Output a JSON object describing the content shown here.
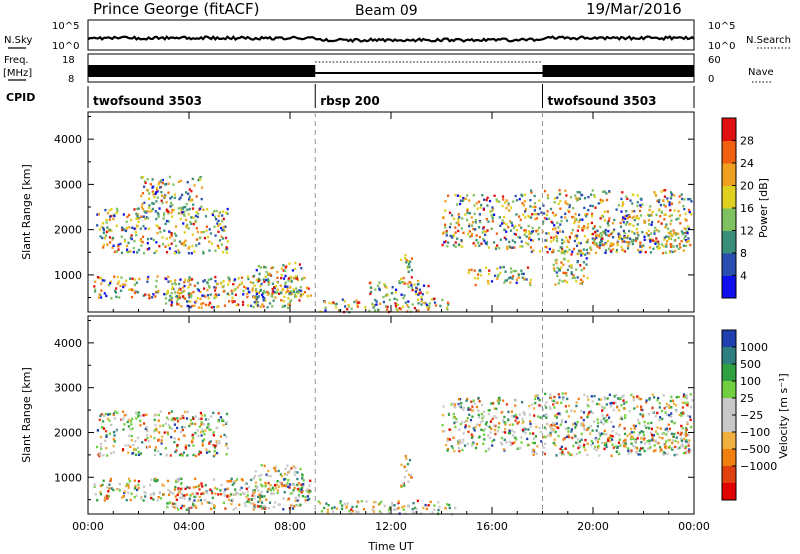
{
  "header": {
    "station": "Prince George (fitACF)",
    "beam": "Beam 09",
    "date": "19/Mar/2016"
  },
  "top_strips": {
    "nsky_label": "N.Sky",
    "nsky_ticks": [
      "10^5",
      "10^0"
    ],
    "nsearch_label": "N.Search",
    "nsearch_ticks": [
      "10^5",
      "10^0"
    ],
    "freq_label_1": "Freq.",
    "freq_label_2": "[MHz]",
    "freq_ticks": [
      "18",
      "8"
    ],
    "nave_label": "Nave",
    "nave_ticks": [
      "60",
      "0"
    ],
    "cpid_label": "CPID",
    "cpid_segments": [
      {
        "name": "twofsound 3503",
        "start_hour": 0,
        "end_hour": 9
      },
      {
        "name": "rbsp 200",
        "start_hour": 9,
        "end_hour": 18
      },
      {
        "name": "twofsound 3503",
        "start_hour": 18,
        "end_hour": 24
      }
    ]
  },
  "colors": {
    "power_scale": [
      "#1010ee",
      "#2a4fb0",
      "#3a8f7a",
      "#7fc060",
      "#e0d020",
      "#f0a020",
      "#f06010",
      "#e01010"
    ],
    "velocity_scale": [
      "#2040b0",
      "#2f7f80",
      "#30a040",
      "#70d040",
      "#c8c8c8",
      "#c8c8c8",
      "#f0b040",
      "#f08010",
      "#e04010",
      "#e00000"
    ],
    "grid": "#999999"
  },
  "chart_data": [
    {
      "type": "heatmap",
      "panel": "power",
      "xlabel": "",
      "ylabel": "Slant Range [km]",
      "xlim": [
        0,
        24
      ],
      "ylim": [
        180,
        4600
      ],
      "yticks": [
        1000,
        2000,
        3000,
        4000
      ],
      "ytick_labels": [
        "1000",
        "2000",
        "3000",
        "4000"
      ],
      "colorbar_label": "Power [dB]",
      "colorbar_ticks": [
        "4",
        "8",
        "12",
        "16",
        "20",
        "24",
        "28"
      ],
      "colorbar_range": [
        0,
        30
      ],
      "scatter_regions": [
        {
          "x": [
            0.2,
            8.8
          ],
          "y": [
            500,
            1000
          ],
          "value": [
            10,
            30
          ]
        },
        {
          "x": [
            0.3,
            5.5
          ],
          "y": [
            1500,
            2500
          ],
          "value": [
            6,
            18
          ]
        },
        {
          "x": [
            3.0,
            7.0
          ],
          "y": [
            300,
            700
          ],
          "value": [
            18,
            30
          ]
        },
        {
          "x": [
            6.5,
            8.5
          ],
          "y": [
            300,
            1300
          ],
          "value": [
            12,
            30
          ]
        },
        {
          "x": [
            2.0,
            4.5
          ],
          "y": [
            2400,
            3200
          ],
          "value": [
            4,
            10
          ]
        },
        {
          "x": [
            9.0,
            14.5
          ],
          "y": [
            200,
            500
          ],
          "value": [
            2,
            10
          ]
        },
        {
          "x": [
            12.3,
            12.8
          ],
          "y": [
            800,
            1500
          ],
          "value": [
            24,
            30
          ]
        },
        {
          "x": [
            11.0,
            13.5
          ],
          "y": [
            500,
            900
          ],
          "value": [
            6,
            14
          ]
        },
        {
          "x": [
            14.0,
            17.5
          ],
          "y": [
            1600,
            2800
          ],
          "value": [
            4,
            12
          ]
        },
        {
          "x": [
            15.0,
            17.5
          ],
          "y": [
            800,
            1200
          ],
          "value": [
            8,
            18
          ]
        },
        {
          "x": [
            17.5,
            23.9
          ],
          "y": [
            1500,
            2900
          ],
          "value": [
            4,
            16
          ]
        },
        {
          "x": [
            18.3,
            19.8
          ],
          "y": [
            800,
            1600
          ],
          "value": [
            6,
            16
          ]
        },
        {
          "x": [
            20.0,
            23.8
          ],
          "y": [
            1600,
            2000
          ],
          "value": [
            8,
            18
          ]
        }
      ]
    },
    {
      "type": "heatmap",
      "panel": "velocity",
      "xlabel": "Time UT",
      "ylabel": "Slant Range [km]",
      "xlim": [
        0,
        24
      ],
      "ylim": [
        180,
        4600
      ],
      "xticks": [
        0,
        4,
        8,
        12,
        16,
        20,
        24
      ],
      "xtick_labels": [
        "00:00",
        "04:00",
        "08:00",
        "12:00",
        "16:00",
        "20:00",
        "00:00"
      ],
      "yticks": [
        1000,
        2000,
        3000,
        4000
      ],
      "ytick_labels": [
        "1000",
        "2000",
        "3000",
        "4000"
      ],
      "colorbar_label": "Velocity [m s⁻¹]",
      "colorbar_ticks": [
        "1000",
        "500",
        "100",
        "25",
        "−25",
        "−100",
        "−500",
        "−1000"
      ],
      "scatter_regions": [
        {
          "x": [
            0.2,
            8.8
          ],
          "y": [
            500,
            1000
          ],
          "value": [
            -500,
            -100
          ]
        },
        {
          "x": [
            0.3,
            5.5
          ],
          "y": [
            1500,
            2500
          ],
          "value": [
            -25,
            25
          ]
        },
        {
          "x": [
            3.0,
            7.0
          ],
          "y": [
            300,
            700
          ],
          "value": [
            -500,
            -100
          ]
        },
        {
          "x": [
            6.5,
            8.5
          ],
          "y": [
            300,
            1300
          ],
          "value": [
            -100,
            25
          ]
        },
        {
          "x": [
            9.0,
            14.5
          ],
          "y": [
            200,
            500
          ],
          "value": [
            -25,
            100
          ]
        },
        {
          "x": [
            12.3,
            12.8
          ],
          "y": [
            800,
            1500
          ],
          "value": [
            -500,
            -100
          ]
        },
        {
          "x": [
            14.0,
            17.5
          ],
          "y": [
            1600,
            2800
          ],
          "value": [
            -25,
            25
          ]
        },
        {
          "x": [
            17.5,
            23.9
          ],
          "y": [
            1500,
            2900
          ],
          "value": [
            -500,
            100
          ]
        },
        {
          "x": [
            20.0,
            23.8
          ],
          "y": [
            1600,
            2000
          ],
          "value": [
            -25,
            25
          ]
        }
      ]
    }
  ]
}
